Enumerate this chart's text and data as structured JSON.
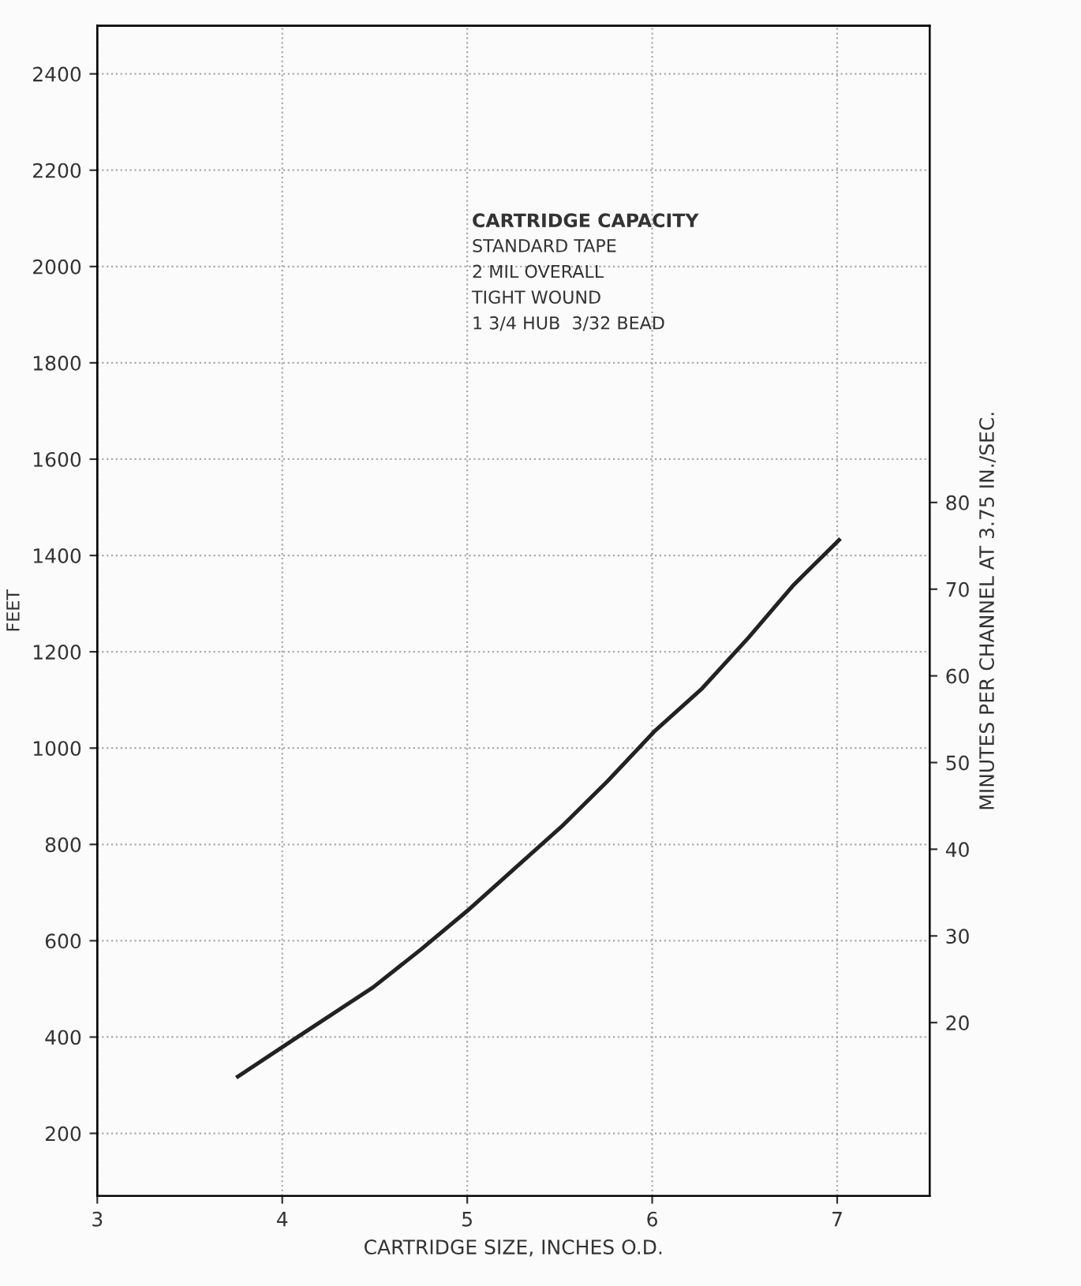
{
  "chart_data": {
    "type": "line",
    "xlabel": "CARTRIDGE SIZE, INCHES O.D.",
    "ylabel": "FEET",
    "y2label": "MINUTES PER CHANNEL AT 3.75 IN./SEC.",
    "annotations": [
      "CARTRIDGE CAPACITY",
      "STANDARD TAPE",
      "2 MIL OVERALL",
      "TIGHT WOUND",
      "1 3/4 HUB  3/32 BEAD"
    ],
    "x": [
      3.76,
      4.07,
      4.49,
      4.75,
      5.0,
      5.25,
      5.51,
      5.76,
      6.01,
      6.27,
      6.52,
      6.76,
      7.01
    ],
    "series": [
      {
        "color": "#222222",
        "values": [
          318,
          397,
          503,
          582,
          662,
          748,
          837,
          932,
          1034,
          1124,
          1229,
          1337,
          1432
        ]
      }
    ],
    "xlim": [
      3,
      7.5
    ],
    "xticks": [
      3,
      4,
      5,
      6,
      7
    ],
    "ylim": [
      70,
      2500
    ],
    "yticks": [
      200,
      400,
      600,
      800,
      1000,
      1200,
      1400,
      1600,
      1800,
      2000,
      2200,
      2400
    ],
    "y2lim": [
      0,
      135
    ],
    "y2ticks": [
      20,
      30,
      40,
      50,
      60,
      70,
      80
    ],
    "grid": true,
    "legend": false,
    "marker": "none",
    "line_style": "solid"
  }
}
